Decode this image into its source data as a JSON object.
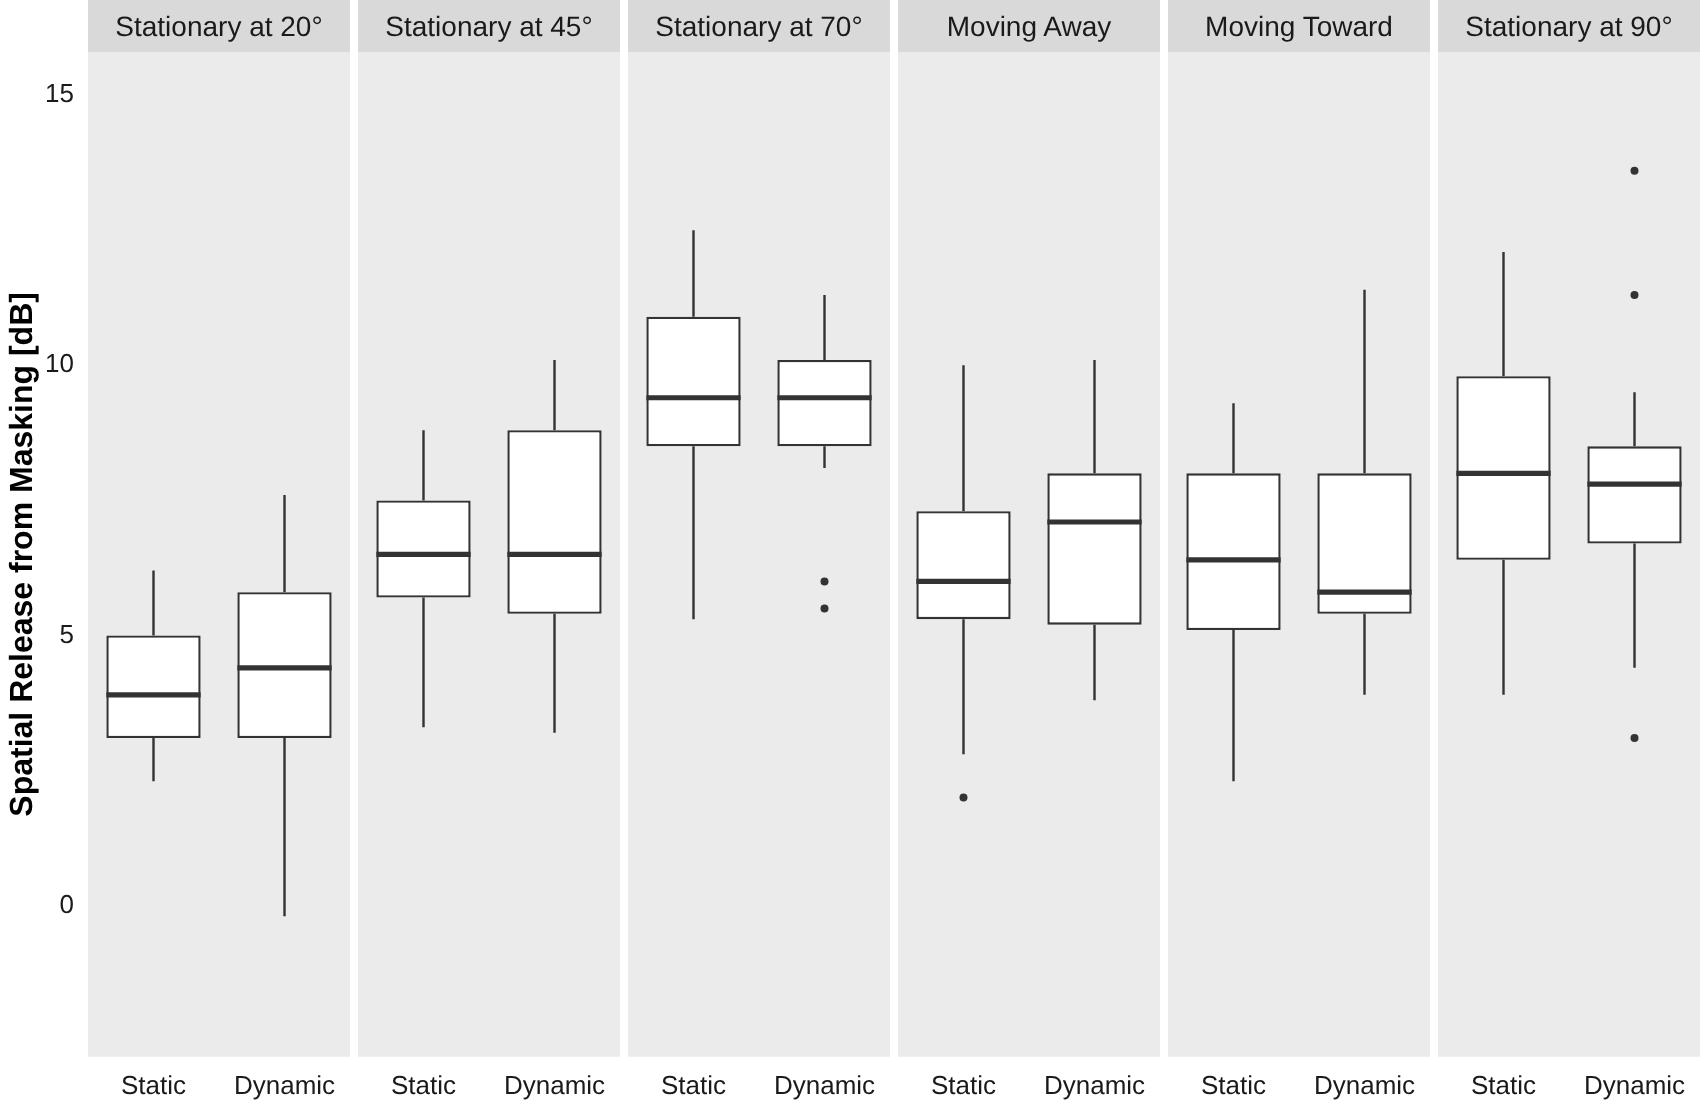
{
  "chart_data": [
    {
      "type": "box",
      "title": "Stationary at 20°",
      "ylabel": "Spatial Release from Masking [dB]",
      "categories": [
        "Static",
        "Dynamic"
      ],
      "ylim": [
        -2.8,
        15.8
      ],
      "yticks": [
        0,
        5,
        10,
        15
      ],
      "grid": false,
      "boxes": [
        {
          "low": 2.3,
          "q1": 3.1,
          "median": 3.9,
          "q3": 5.0,
          "high": 6.2
        },
        {
          "low": -0.2,
          "q1": 3.1,
          "median": 4.4,
          "q3": 5.8,
          "high": 7.6
        }
      ]
    },
    {
      "type": "box",
      "title": "Stationary at 45°",
      "categories": [
        "Static",
        "Dynamic"
      ],
      "ylim": [
        -2.8,
        15.8
      ],
      "tick_labels": "x",
      "grid": false,
      "boxes": [
        {
          "low": 3.3,
          "q1": 5.7,
          "median": 6.5,
          "q3": 7.5,
          "high": 8.8
        },
        {
          "low": 3.2,
          "q1": 5.4,
          "median": 6.5,
          "q3": 8.8,
          "high": 10.1
        }
      ]
    },
    {
      "type": "box",
      "title": "Stationary at 70°",
      "categories": [
        "Static",
        "Dynamic"
      ],
      "ylim": [
        -2.8,
        15.8
      ],
      "tick_labels": "x",
      "grid": false,
      "boxes": [
        {
          "low": 5.3,
          "q1": 8.5,
          "median": 9.4,
          "q3": 10.9,
          "high": 12.5
        },
        {
          "low": 8.1,
          "q1": 8.5,
          "median": 9.4,
          "q3": 10.1,
          "high": 11.3,
          "outliers": [
            6.0,
            5.5
          ]
        }
      ]
    },
    {
      "type": "box",
      "title": "Moving Away",
      "categories": [
        "Static",
        "Dynamic"
      ],
      "ylim": [
        -2.8,
        15.8
      ],
      "tick_labels": "x",
      "grid": false,
      "boxes": [
        {
          "low": 2.8,
          "q1": 5.3,
          "median": 6.0,
          "q3": 7.3,
          "high": 10.0,
          "outliers": [
            2.0
          ]
        },
        {
          "low": 3.8,
          "q1": 5.2,
          "median": 7.1,
          "q3": 8.0,
          "high": 10.1
        }
      ]
    },
    {
      "type": "box",
      "title": "Moving Toward",
      "categories": [
        "Static",
        "Dynamic"
      ],
      "ylim": [
        -2.8,
        15.8
      ],
      "tick_labels": "x",
      "grid": false,
      "boxes": [
        {
          "low": 2.3,
          "q1": 5.1,
          "median": 6.4,
          "q3": 8.0,
          "high": 9.3
        },
        {
          "low": 3.9,
          "q1": 5.4,
          "median": 5.8,
          "q3": 8.0,
          "high": 11.4
        }
      ]
    },
    {
      "type": "box",
      "title": "Stationary at 90°",
      "categories": [
        "Static",
        "Dynamic"
      ],
      "ylim": [
        -2.8,
        15.8
      ],
      "tick_labels": "x",
      "grid": false,
      "boxes": [
        {
          "low": 3.9,
          "q1": 6.4,
          "median": 8.0,
          "q3": 9.8,
          "high": 12.1
        },
        {
          "low": 4.4,
          "q1": 6.7,
          "median": 7.8,
          "q3": 8.5,
          "high": 9.5,
          "outliers": [
            13.6,
            11.3,
            3.1
          ]
        }
      ]
    }
  ]
}
